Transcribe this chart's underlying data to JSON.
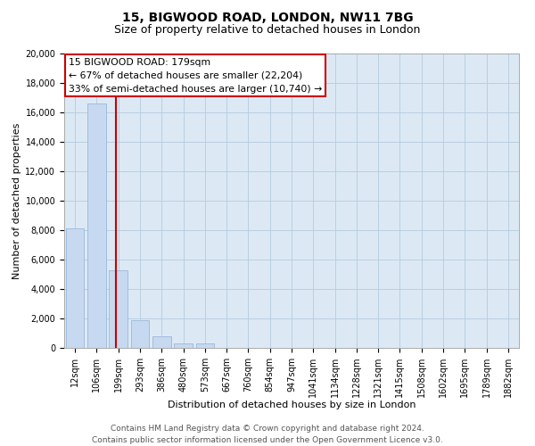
{
  "title": "15, BIGWOOD ROAD, LONDON, NW11 7BG",
  "subtitle": "Size of property relative to detached houses in London",
  "xlabel": "Distribution of detached houses by size in London",
  "ylabel": "Number of detached properties",
  "bar_labels": [
    "12sqm",
    "106sqm",
    "199sqm",
    "293sqm",
    "386sqm",
    "480sqm",
    "573sqm",
    "667sqm",
    "760sqm",
    "854sqm",
    "947sqm",
    "1041sqm",
    "1134sqm",
    "1228sqm",
    "1321sqm",
    "1415sqm",
    "1508sqm",
    "1602sqm",
    "1695sqm",
    "1789sqm",
    "1882sqm"
  ],
  "bar_values": [
    8100,
    16600,
    5300,
    1850,
    800,
    300,
    300,
    0,
    0,
    0,
    0,
    0,
    0,
    0,
    0,
    0,
    0,
    0,
    0,
    0,
    0
  ],
  "bar_color": "#c6d9f0",
  "bar_edge_color": "#9ab8d8",
  "property_line_x": 1.87,
  "property_label": "15 BIGWOOD ROAD: 179sqm",
  "annotation_line1": "← 67% of detached houses are smaller (22,204)",
  "annotation_line2": "33% of semi-detached houses are larger (10,740) →",
  "ylim": [
    0,
    20000
  ],
  "yticks": [
    0,
    2000,
    4000,
    6000,
    8000,
    10000,
    12000,
    14000,
    16000,
    18000,
    20000
  ],
  "annotation_box_color": "#ffffff",
  "annotation_box_edge": "#cc0000",
  "property_line_color": "#cc0000",
  "footer_line1": "Contains HM Land Registry data © Crown copyright and database right 2024.",
  "footer_line2": "Contains public sector information licensed under the Open Government Licence v3.0.",
  "bg_color": "#ffffff",
  "plot_bg_color": "#dce9f5",
  "grid_color": "#b8cfe0",
  "title_fontsize": 10,
  "subtitle_fontsize": 9,
  "axis_label_fontsize": 8,
  "tick_fontsize": 7,
  "footer_fontsize": 6.5
}
